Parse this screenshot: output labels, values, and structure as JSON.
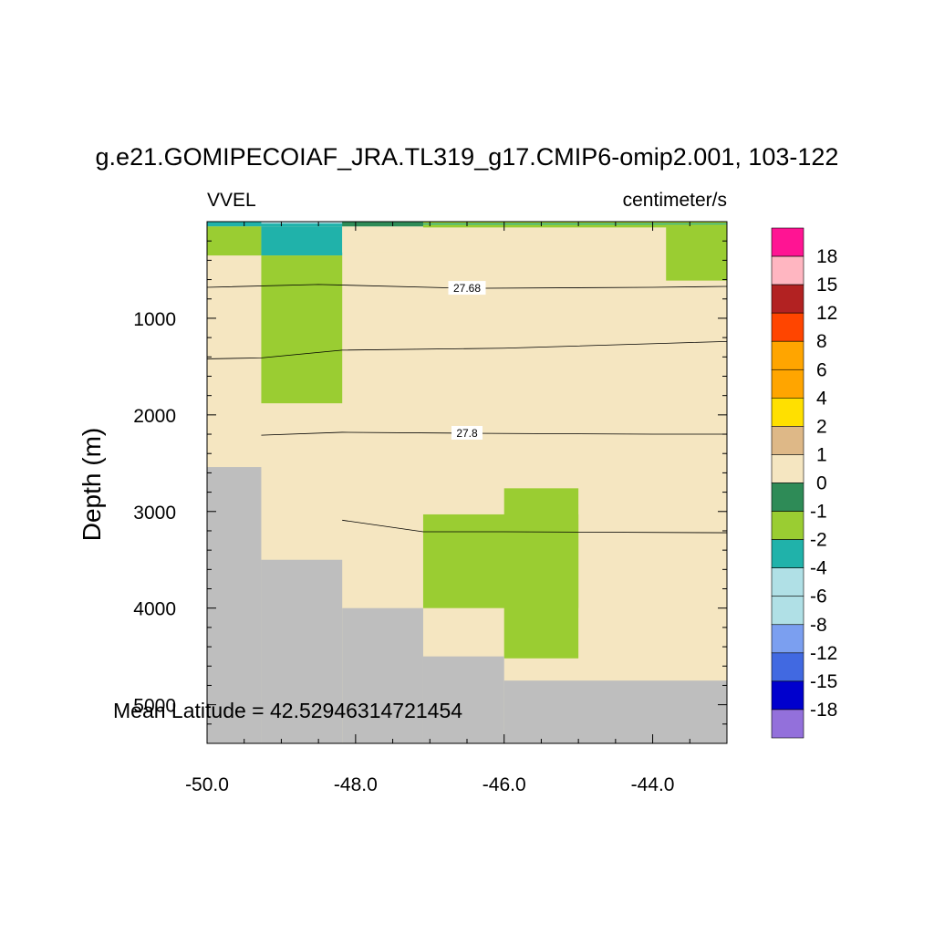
{
  "chart_data": {
    "type": "heatmap",
    "title": "g.e21.GOMIPECOIAF_JRA.TL319_g17.CMIP6-omip2.001, 103-122",
    "left_label": "VVEL",
    "units": "centimeter/s",
    "ylabel": "Depth (m)",
    "xlabel": "",
    "xlim": [
      -50.0,
      -43.0
    ],
    "ylim": [
      5400,
      0
    ],
    "y_reversed": true,
    "x_ticks": [
      "-50.0",
      "-48.0",
      "-46.0",
      "-44.0"
    ],
    "y_ticks": [
      "1000",
      "2000",
      "3000",
      "4000",
      "5000"
    ],
    "annotation": "Mean Latitude = 42.52946314721454",
    "colorbar": {
      "labels": [
        "18",
        "15",
        "12",
        "8",
        "6",
        "4",
        "2",
        "1",
        "0",
        "-1",
        "-2",
        "-4",
        "-6",
        "-8",
        "-12",
        "-15",
        "-18"
      ],
      "colors": [
        "#ff1493",
        "#ffb6c1",
        "#b22222",
        "#ff4500",
        "#ffa500",
        "#ffa500",
        "#ffe000",
        "#deb887",
        "#f5e6c1",
        "#2e8b57",
        "#9acd32",
        "#20b2aa",
        "#b0e0e6",
        "#b0e0e6",
        "#7b9ff0",
        "#4169e1",
        "#0000cd",
        "#9370db"
      ]
    },
    "colors": {
      "background": "#f5e6c1",
      "land": "#bebebe",
      "neg1": "#2e8b57",
      "neg2": "#9acd32",
      "pos1": "#deb887",
      "neg4": "#20b2aa"
    },
    "cells": [
      {
        "x": [
          -50.0,
          -43.0
        ],
        "y": [
          0,
          50
        ],
        "value": -2
      },
      {
        "x": [
          -49.27,
          -48.18
        ],
        "y": [
          0,
          20
        ],
        "value": -4
      },
      {
        "x": [
          -47.09,
          -43.0
        ],
        "y": [
          0,
          20
        ],
        "value": -1
      },
      {
        "x": [
          -48.18,
          -47.09
        ],
        "y": [
          0,
          50
        ],
        "value": 0
      },
      {
        "x": [
          -50.0,
          -49.27
        ],
        "y": [
          50,
          350
        ],
        "value": -1
      },
      {
        "x": [
          -49.27,
          -48.18
        ],
        "y": [
          50,
          350
        ],
        "value": -2
      },
      {
        "x": [
          -48.18,
          -47.09
        ],
        "y": [
          50,
          320
        ],
        "value": 1
      },
      {
        "x": [
          -49.27,
          -48.18
        ],
        "y": [
          350,
          1880
        ],
        "value": -1
      },
      {
        "x": [
          -47.09,
          -43.0
        ],
        "y": [
          30,
          60
        ],
        "value": -1
      },
      {
        "x": [
          -43.82,
          -43.0
        ],
        "y": [
          30,
          610
        ],
        "value": -1
      },
      {
        "x": [
          -47.09,
          -45.0
        ],
        "y": [
          3030,
          4000
        ],
        "value": -1
      },
      {
        "x": [
          -46.0,
          -45.0
        ],
        "y": [
          2760,
          4520
        ],
        "value": -1
      }
    ],
    "land_steps": [
      {
        "x": [
          -50.0,
          -49.27
        ],
        "depth": 2540
      },
      {
        "x": [
          -49.27,
          -48.18
        ],
        "depth": 3500
      },
      {
        "x": [
          -48.18,
          -47.09
        ],
        "depth": 4000
      },
      {
        "x": [
          -47.09,
          -46.0
        ],
        "depth": 4500
      },
      {
        "x": [
          -46.0,
          -43.0
        ],
        "depth": 4750
      }
    ],
    "contours": [
      {
        "label": "27.68",
        "label_x": -46.5,
        "points": [
          [
            -50.0,
            680
          ],
          [
            -48.5,
            650
          ],
          [
            -46.5,
            690
          ],
          [
            -44.0,
            680
          ],
          [
            -43.0,
            670
          ]
        ]
      },
      {
        "label": "",
        "points": [
          [
            -50.0,
            1420
          ],
          [
            -49.27,
            1410
          ],
          [
            -48.18,
            1330
          ],
          [
            -46.0,
            1310
          ],
          [
            -43.0,
            1240
          ]
        ]
      },
      {
        "label": "27.8",
        "label_x": -46.5,
        "points": [
          [
            -49.27,
            2210
          ],
          [
            -48.18,
            2180
          ],
          [
            -46.5,
            2190
          ],
          [
            -44.0,
            2200
          ],
          [
            -43.0,
            2200
          ]
        ]
      },
      {
        "label": "",
        "points": [
          [
            -48.18,
            3090
          ],
          [
            -47.09,
            3210
          ],
          [
            -46.0,
            3210
          ],
          [
            -43.0,
            3220
          ]
        ]
      }
    ]
  }
}
